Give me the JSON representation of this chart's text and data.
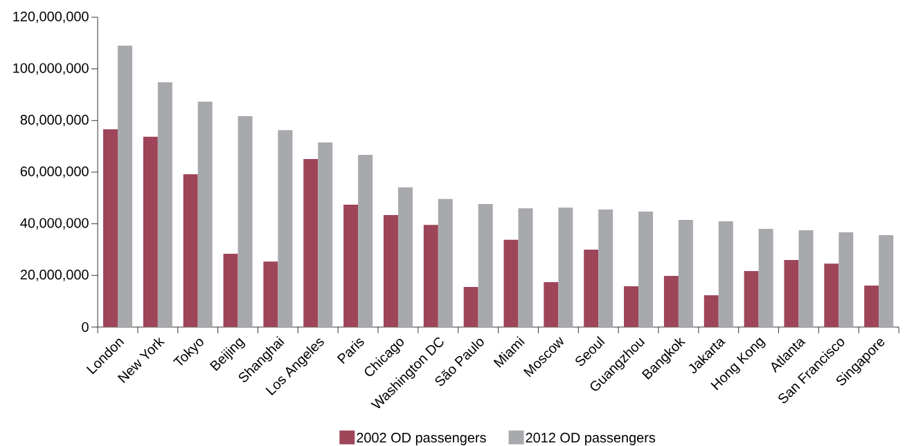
{
  "chart_data": {
    "type": "bar",
    "categories": [
      "London",
      "New York",
      "Tokyo",
      "Beijing",
      "Shanghai",
      "Los Angeles",
      "Paris",
      "Chicago",
      "Washington DC",
      "São Paulo",
      "Miami",
      "Moscow",
      "Seoul",
      "Guangzhou",
      "Bangkok",
      "Jakarta",
      "Hong Kong",
      "Atlanta",
      "San Francisco",
      "Singapore"
    ],
    "series": [
      {
        "name": "2002 OD passengers",
        "color": "#9e4559",
        "values": [
          76600000,
          73700000,
          59200000,
          28400000,
          25400000,
          65100000,
          47400000,
          43400000,
          39600000,
          15500000,
          33800000,
          17400000,
          30000000,
          15800000,
          19800000,
          12300000,
          21700000,
          26000000,
          24600000,
          16100000
        ]
      },
      {
        "name": "2012 OD passengers",
        "color": "#a8a9ad",
        "values": [
          109000000,
          94800000,
          87300000,
          81700000,
          76300000,
          71500000,
          66700000,
          54100000,
          49600000,
          47700000,
          46000000,
          46300000,
          45500000,
          44700000,
          41500000,
          41000000,
          38000000,
          37500000,
          36700000,
          35600000
        ]
      }
    ],
    "ylim": [
      0,
      120000000
    ],
    "yticks": [
      {
        "value": 0,
        "label": "0"
      },
      {
        "value": 20000000,
        "label": "20,000,000"
      },
      {
        "value": 40000000,
        "label": "40,000,000"
      },
      {
        "value": 60000000,
        "label": "60,000,000"
      },
      {
        "value": 80000000,
        "label": "80,000,000"
      },
      {
        "value": 100000000,
        "label": "100,000,000"
      },
      {
        "value": 120000000,
        "label": "120,000,000"
      }
    ],
    "legend": "bottom"
  }
}
